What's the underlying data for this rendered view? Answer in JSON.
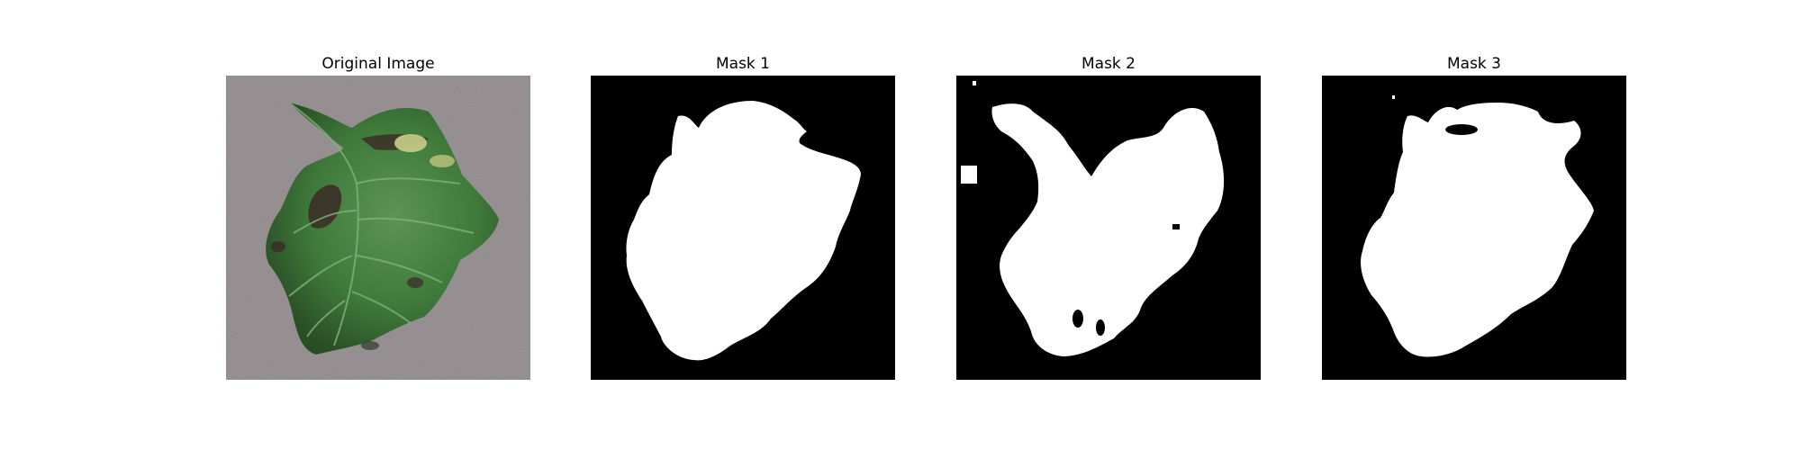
{
  "figure": {
    "panels": [
      {
        "title": "Original Image",
        "kind": "photo",
        "subject": "tomato-leaf"
      },
      {
        "title": "Mask 1",
        "kind": "mask"
      },
      {
        "title": "Mask 2",
        "kind": "mask"
      },
      {
        "title": "Mask 3",
        "kind": "mask"
      }
    ]
  },
  "colors": {
    "page_background": "#ffffff",
    "mask_background": "#000000",
    "mask_foreground": "#ffffff",
    "leaf_green": "#3f7a3a",
    "leaf_dark": "#2a4d26",
    "photo_background": "#9b9597",
    "lesion": "#3b2a24"
  }
}
